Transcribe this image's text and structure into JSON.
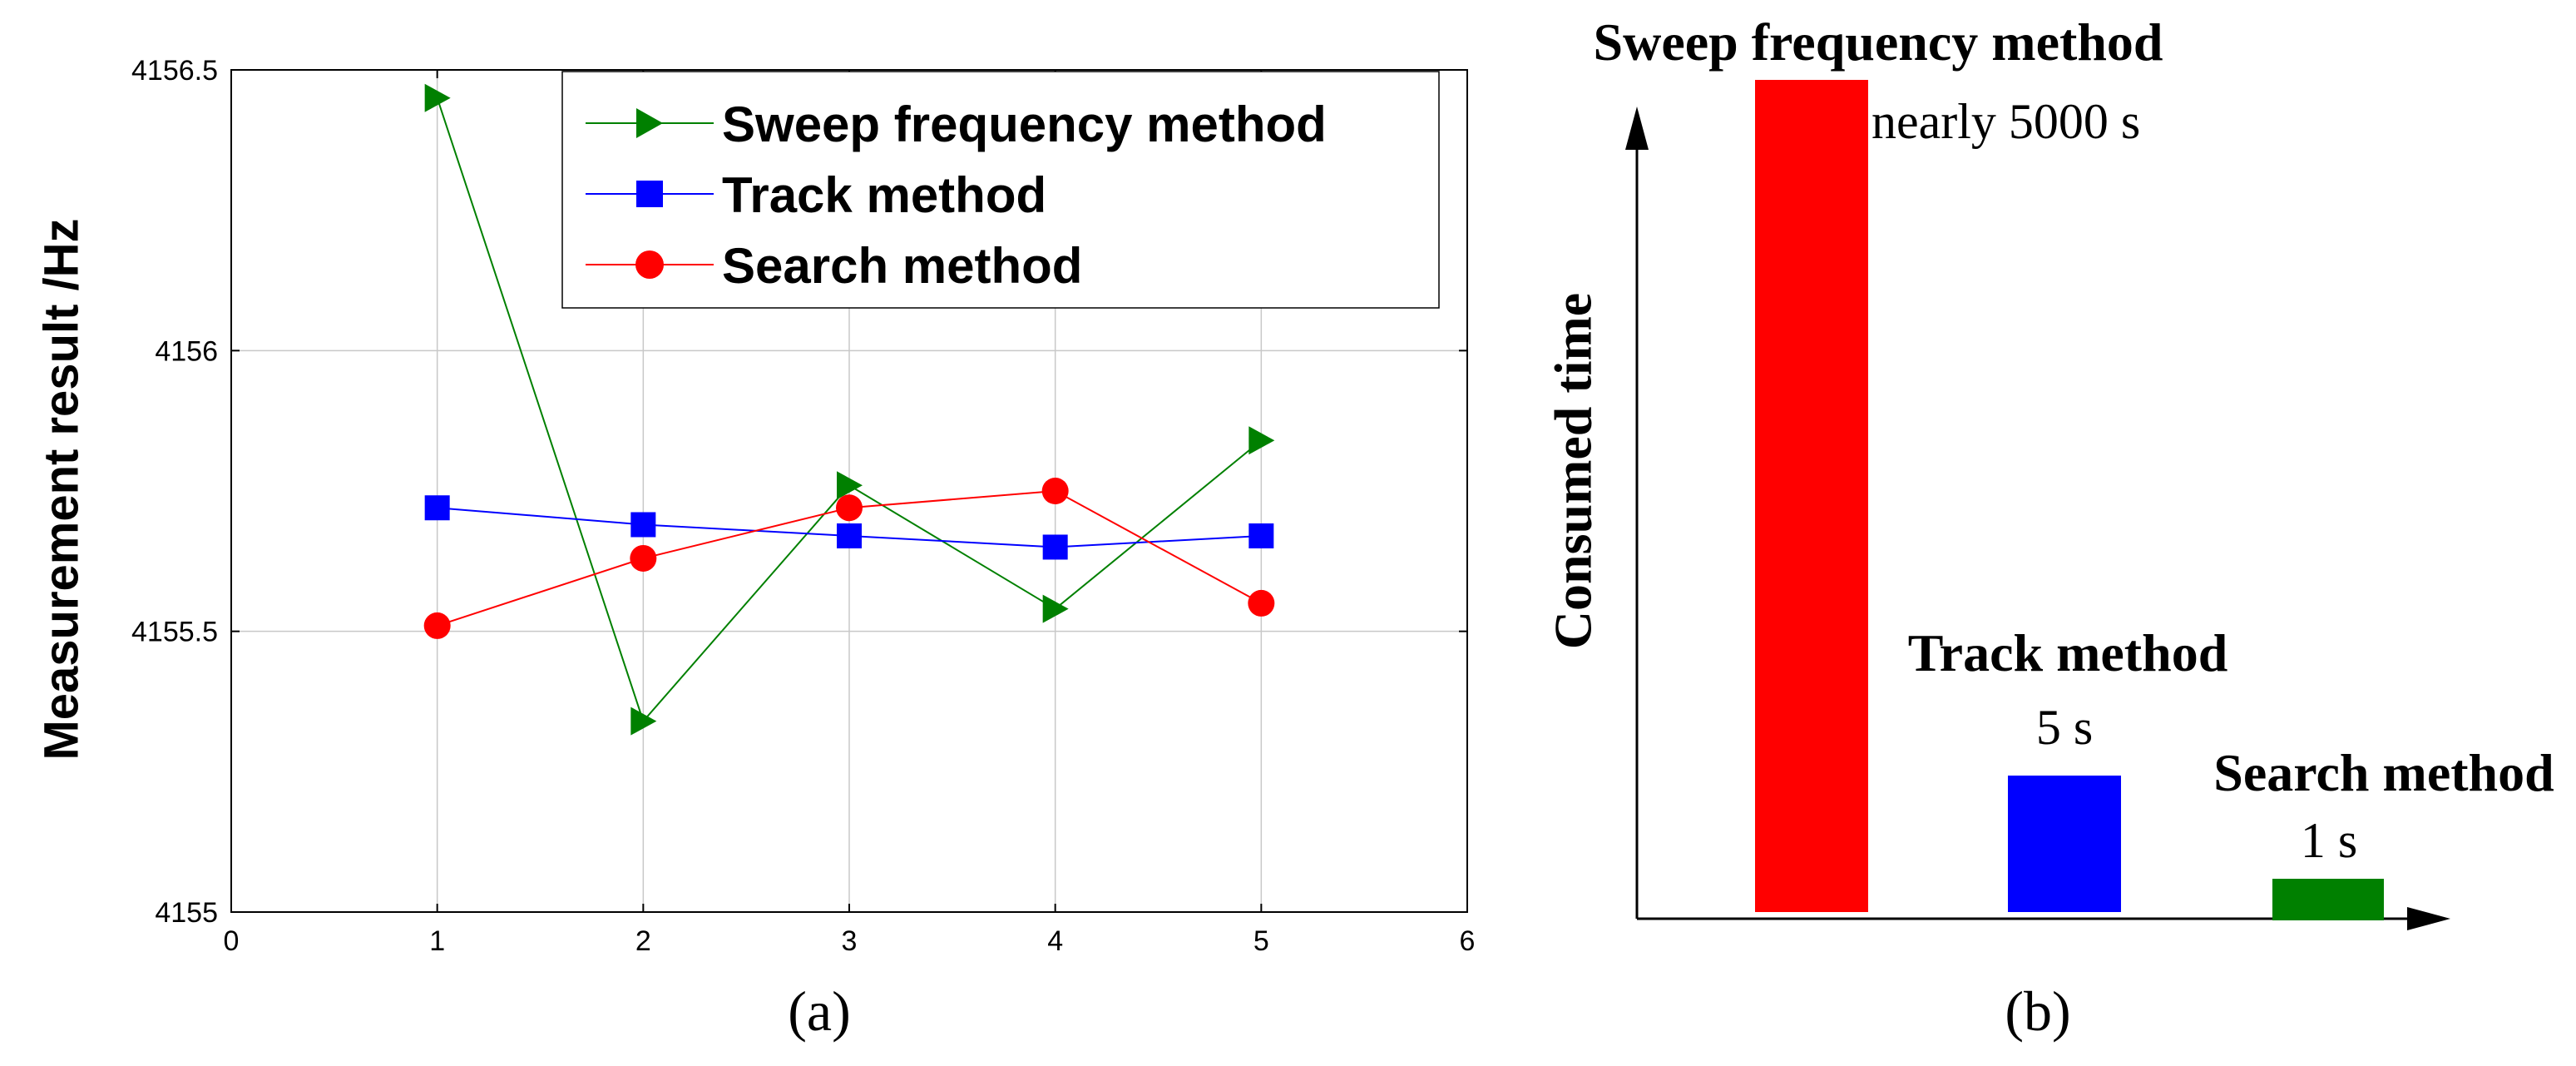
{
  "chart_data": [
    {
      "type": "line",
      "caption": "(a)",
      "ylabel": "Measurement result /Hz",
      "xlabel": "",
      "xlim": [
        0,
        6
      ],
      "ylim": [
        4155,
        4156.5
      ],
      "xticks": [
        "0",
        "1",
        "2",
        "3",
        "4",
        "5",
        "6"
      ],
      "yticks": [
        "4155",
        "4155.5",
        "4156",
        "4156.5"
      ],
      "grid": true,
      "legend_position": "top-right",
      "x": [
        1,
        2,
        3,
        4,
        5
      ],
      "series": [
        {
          "name": "Sweep frequency method",
          "marker": "triangle-right",
          "color": "#008000",
          "values": [
            4156.45,
            4155.34,
            4155.76,
            4155.54,
            4155.84
          ]
        },
        {
          "name": "Track method",
          "marker": "square",
          "color": "#0000ff",
          "values": [
            4155.72,
            4155.69,
            4155.67,
            4155.65,
            4155.67
          ]
        },
        {
          "name": "Search method",
          "marker": "circle",
          "color": "#ff0000",
          "values": [
            4155.51,
            4155.63,
            4155.72,
            4155.75,
            4155.55
          ]
        }
      ]
    },
    {
      "type": "bar",
      "caption": "(b)",
      "ylabel": "Consumed time",
      "categories": [
        "Sweep frequency method",
        "Track method",
        "Search method"
      ],
      "value_labels": [
        "nearly 5000 s",
        "5 s",
        "1 s"
      ],
      "values": [
        5000,
        5,
        1
      ],
      "colors": [
        "#ff0000",
        "#0000ff",
        "#008000"
      ],
      "scale": "schematic, not to scale"
    }
  ]
}
